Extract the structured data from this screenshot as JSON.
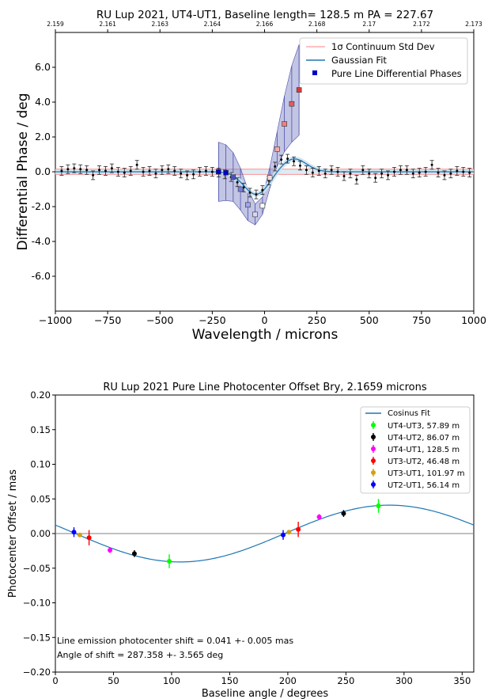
{
  "chart_data": [
    {
      "type": "line",
      "title": "RU Lup 2021, UT4-UT1,  Baseline length= 128.5 m PA = 227.67",
      "xlabel": "Wavelength / microns",
      "ylabel": "Differential Phase / deg",
      "xlim": [
        -1000,
        1000
      ],
      "ylim": [
        -8,
        8
      ],
      "x_ticks": [
        "−1000",
        "−750",
        "−500",
        "−250",
        "0",
        "250",
        "500",
        "750",
        "1000"
      ],
      "y_ticks": [
        "6.0",
        "4.0",
        "2.0",
        "0.0",
        "-2.0",
        "-4.0",
        "-6.0"
      ],
      "top_axis_ticks": [
        "2.159",
        "2.161",
        "2.163",
        "2.164",
        "2.166",
        "2.168",
        "2.17",
        "2.172",
        "2.173"
      ],
      "grid": false,
      "legend_position": "top-right",
      "legend": [
        {
          "label": "1σ Continuum Std Dev",
          "color": "#ff8080",
          "kind": "line"
        },
        {
          "label": "Gaussian Fit",
          "color": "#1f77b4",
          "kind": "line"
        },
        {
          "label": "Pure Line Differential Phases",
          "color": "#0000cc",
          "kind": "square"
        }
      ],
      "continuum_std_band": [
        -0.15,
        0.15
      ],
      "gaussian_fit": {
        "a1": -1.3,
        "c1": -40,
        "s1": 60,
        "a2": 0.75,
        "c2": 140,
        "s2": 60
      },
      "diff_phase_points": {
        "x": [
          -970,
          -940,
          -910,
          -880,
          -850,
          -820,
          -790,
          -760,
          -730,
          -700,
          -670,
          -640,
          -610,
          -580,
          -550,
          -520,
          -490,
          -460,
          -430,
          -400,
          -370,
          -340,
          -310,
          -280,
          -250,
          -220,
          -190,
          -160,
          -130,
          -100,
          -70,
          -40,
          -10,
          20,
          50,
          80,
          110,
          140,
          170,
          200,
          230,
          260,
          290,
          320,
          350,
          380,
          410,
          440,
          470,
          500,
          530,
          560,
          590,
          620,
          650,
          680,
          710,
          740,
          770,
          800,
          830,
          860,
          890,
          920,
          950,
          980
        ],
        "y": [
          0.05,
          0.15,
          0.2,
          0.15,
          0.1,
          -0.2,
          0.1,
          0.05,
          0.2,
          0.0,
          -0.05,
          0.05,
          0.4,
          0.0,
          0.05,
          -0.1,
          0.1,
          0.15,
          0.05,
          -0.1,
          -0.2,
          -0.15,
          0.0,
          0.05,
          0.0,
          -0.05,
          -0.15,
          -0.3,
          -0.6,
          -0.9,
          -1.2,
          -1.3,
          -1.05,
          -0.5,
          0.3,
          0.7,
          0.75,
          0.6,
          0.35,
          0.1,
          -0.05,
          0.05,
          -0.1,
          0.1,
          0.0,
          -0.25,
          -0.1,
          -0.45,
          0.1,
          -0.1,
          -0.35,
          -0.1,
          -0.2,
          0.0,
          0.1,
          0.1,
          -0.1,
          -0.05,
          0.0,
          0.4,
          -0.05,
          -0.2,
          -0.1,
          0.05,
          0.0,
          -0.05
        ],
        "err": [
          0.25,
          0.25,
          0.25,
          0.25,
          0.25,
          0.25,
          0.25,
          0.25,
          0.25,
          0.25,
          0.25,
          0.25,
          0.25,
          0.25,
          0.25,
          0.25,
          0.25,
          0.25,
          0.25,
          0.25,
          0.25,
          0.25,
          0.25,
          0.25,
          0.25,
          0.25,
          0.25,
          0.25,
          0.25,
          0.25,
          0.25,
          0.25,
          0.25,
          0.25,
          0.25,
          0.25,
          0.25,
          0.25,
          0.25,
          0.25,
          0.25,
          0.25,
          0.25,
          0.25,
          0.25,
          0.25,
          0.25,
          0.25,
          0.25,
          0.25,
          0.25,
          0.25,
          0.25,
          0.25,
          0.25,
          0.25,
          0.25,
          0.25,
          0.25,
          0.25,
          0.25,
          0.25,
          0.25,
          0.25,
          0.25,
          0.25
        ]
      },
      "pure_line_phases": {
        "x": [
          -220,
          -185,
          -150,
          -115,
          -80,
          -45,
          -10,
          25,
          60,
          95,
          130,
          165
        ],
        "y": [
          0.0,
          -0.05,
          -0.3,
          -1.0,
          -1.9,
          -2.45,
          -1.95,
          -0.35,
          1.3,
          2.75,
          3.9,
          4.7
        ],
        "err_low": [
          1.7,
          1.6,
          1.4,
          1.2,
          0.9,
          0.6,
          0.5,
          0.6,
          1.0,
          1.6,
          2.2,
          2.6
        ],
        "err_high": [
          1.7,
          1.6,
          1.4,
          1.2,
          0.9,
          0.6,
          0.5,
          0.6,
          1.0,
          1.6,
          2.2,
          2.6
        ],
        "colors": [
          "#0000cc",
          "#0000cc",
          "#4b50c8",
          "#7b80e0",
          "#a0a4ee",
          "#d6d8fa",
          "#ffffff",
          "#f8dada",
          "#f5a8a8",
          "#ef8080",
          "#e65c5c",
          "#e03838"
        ]
      }
    },
    {
      "type": "scatter",
      "title": "RU Lup 2021 Pure Line Photocenter Offset Bry, 2.1659 microns",
      "xlabel": "Baseline angle / degrees",
      "ylabel": "Photocenter Offset / mas",
      "xlim": [
        0,
        360
      ],
      "ylim": [
        -0.2,
        0.2
      ],
      "x_ticks": [
        "0",
        "50",
        "100",
        "150",
        "200",
        "250",
        "300",
        "350"
      ],
      "y_ticks": [
        "0.20",
        "0.15",
        "0.10",
        "0.05",
        "0.00",
        "−0.05",
        "−0.10",
        "−0.15",
        "−0.20"
      ],
      "grid": false,
      "legend_position": "top-right",
      "fit": {
        "label": "Cosinus Fit",
        "color": "#1f77b4",
        "amplitude": 0.041,
        "phase_deg": 287.358
      },
      "series": [
        {
          "name": "UT4-UT3, 57.89 m",
          "color": "#00ff00",
          "x": [
            98,
            278
          ],
          "y": [
            -0.04,
            0.04
          ],
          "err": [
            0.01,
            0.01
          ]
        },
        {
          "name": "UT4-UT2, 86.07 m",
          "color": "#000000",
          "x": [
            68,
            248
          ],
          "y": [
            -0.029,
            0.029
          ],
          "err": [
            0.005,
            0.005
          ]
        },
        {
          "name": "UT4-UT1, 128.5 m",
          "color": "#ff00ff",
          "x": [
            47,
            227
          ],
          "y": [
            -0.024,
            0.024
          ],
          "err": [
            0.004,
            0.004
          ]
        },
        {
          "name": "UT3-UT2, 46.48 m",
          "color": "#ff0000",
          "x": [
            29,
            209
          ],
          "y": [
            -0.006,
            0.006
          ],
          "err": [
            0.011,
            0.011
          ]
        },
        {
          "name": "UT3-UT1, 101.97 m",
          "color": "#d4a017",
          "x": [
            21,
            201
          ],
          "y": [
            -0.002,
            0.002
          ],
          "err": [
            0.003,
            0.003
          ]
        },
        {
          "name": "UT2-UT1, 56.14 m",
          "color": "#0000ff",
          "x": [
            16,
            196
          ],
          "y": [
            0.002,
            -0.002
          ],
          "err": [
            0.007,
            0.007
          ]
        }
      ],
      "annotations": [
        "Line emission photocenter shift = 0.041 +- 0.005 mas",
        "Angle of shift =  287.358 +- 3.565 deg"
      ]
    }
  ]
}
